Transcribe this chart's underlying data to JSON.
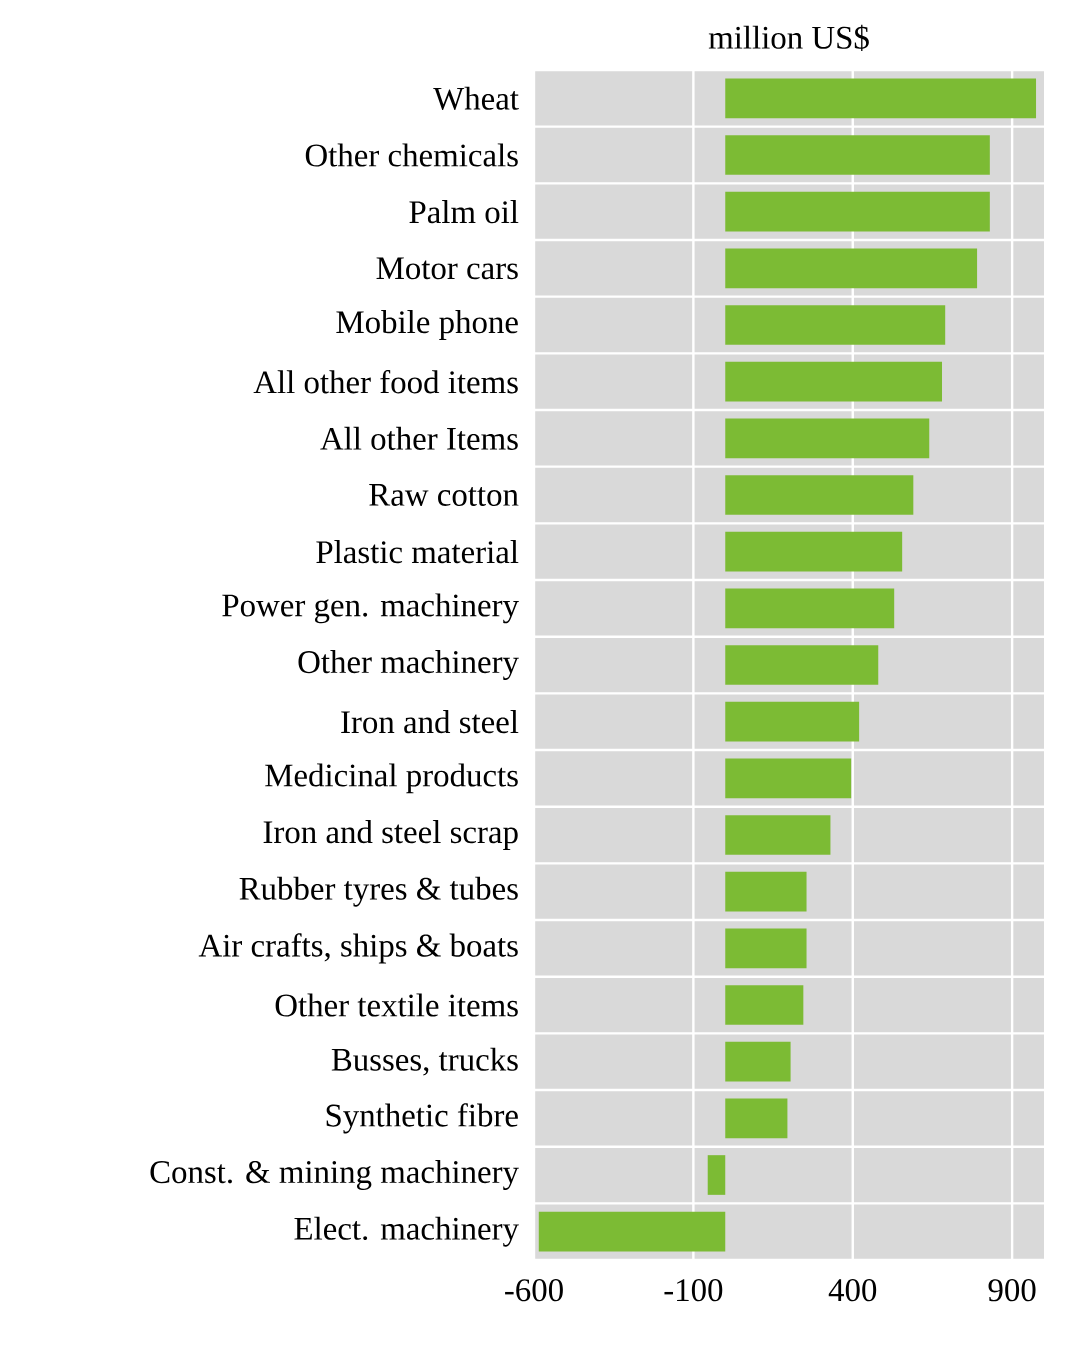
{
  "chart_data": {
    "type": "bar",
    "orientation": "horizontal",
    "title": "million US$",
    "categories": [
      "Wheat",
      "Other chemicals",
      "Palm oil",
      "Motor cars",
      "Mobile phone",
      "All other food items",
      "All other Items",
      "Raw cotton",
      "Plastic material",
      "Power gen. machinery",
      "Other machinery",
      "Iron and steel",
      "Medicinal products",
      "Iron and steel scrap",
      "Rubber tyres & tubes",
      "Air crafts, ships & boats",
      "Other textile items",
      "Busses, trucks",
      "Synthetic fibre",
      "Const. & mining machinery",
      "Elect. machinery"
    ],
    "values": [
      975,
      830,
      830,
      790,
      690,
      680,
      640,
      590,
      555,
      530,
      480,
      420,
      395,
      330,
      255,
      255,
      245,
      205,
      195,
      -55,
      -585
    ],
    "color": "#7cbb34",
    "xlim": [
      -600,
      1000
    ],
    "xticks": [
      -600,
      -100,
      400,
      900
    ],
    "grid": true
  }
}
